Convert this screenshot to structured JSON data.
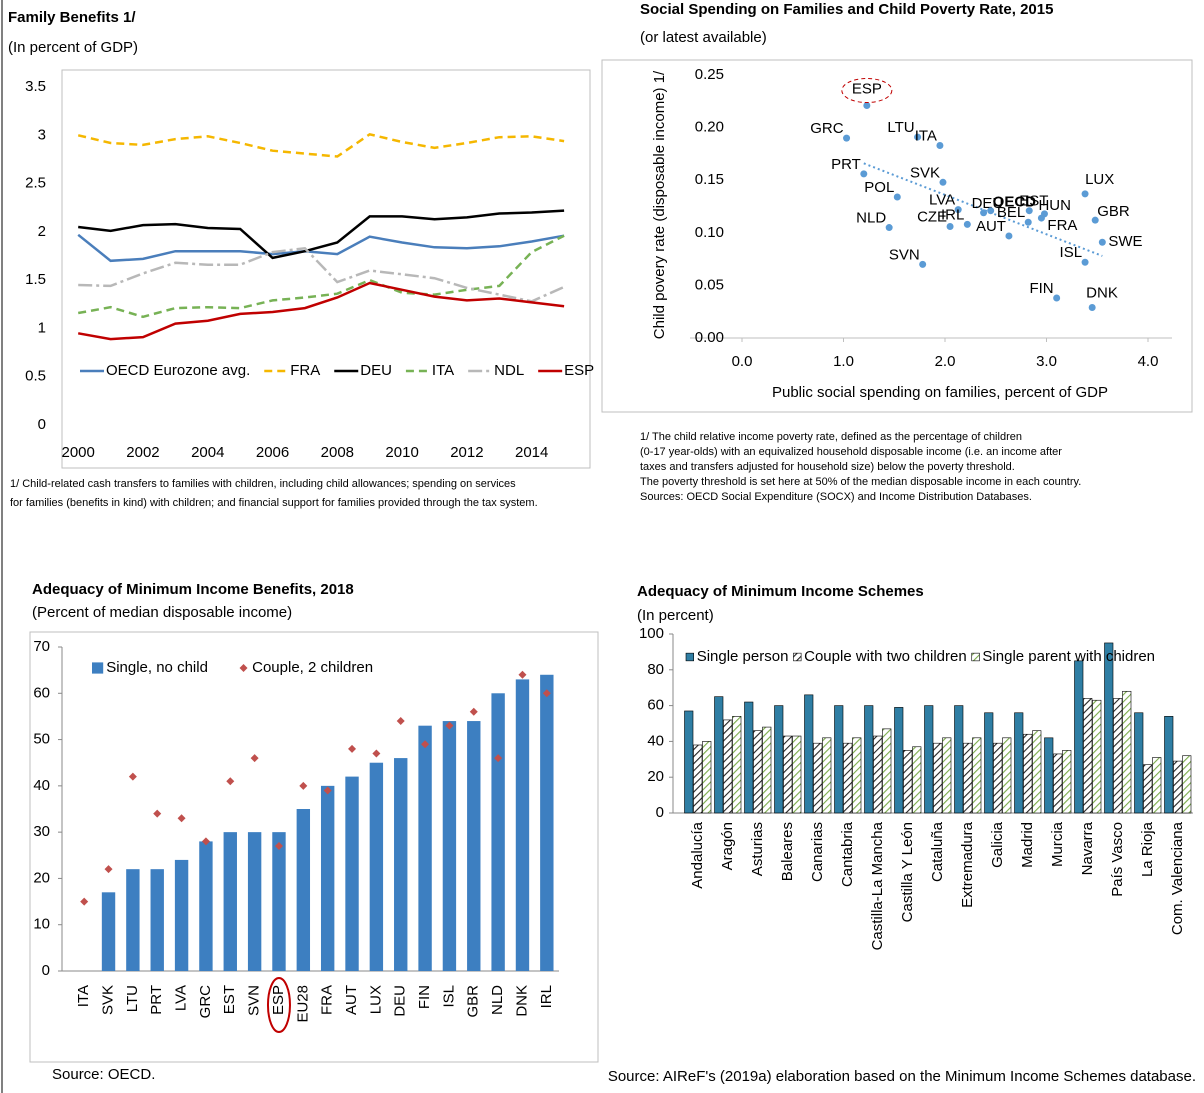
{
  "chart_data": [
    {
      "type": "line",
      "title": "Family Benefits 1/",
      "subtitle": "(In percent of GDP)",
      "title_color": "#2e75b6",
      "x": [
        2000,
        2001,
        2002,
        2003,
        2004,
        2005,
        2006,
        2007,
        2008,
        2009,
        2010,
        2011,
        2012,
        2013,
        2014,
        2015
      ],
      "xlim": [
        1999.5,
        2015.8
      ],
      "xticks": [
        2000,
        2002,
        2004,
        2006,
        2008,
        2010,
        2012,
        2014
      ],
      "ylim": [
        0,
        3.5
      ],
      "yticks": [
        0,
        0.5,
        1,
        1.5,
        2,
        2.5,
        3,
        3.5
      ],
      "series": [
        {
          "name": "OECD Eurozone avg.",
          "color": "#4a7ebb",
          "style": "solid",
          "values": [
            1.97,
            1.7,
            1.72,
            1.8,
            1.8,
            1.8,
            1.77,
            1.8,
            1.77,
            1.95,
            1.89,
            1.84,
            1.83,
            1.85,
            1.9,
            1.96
          ]
        },
        {
          "name": "FRA",
          "color": "#f5b700",
          "style": "dashed",
          "values": [
            3.0,
            2.92,
            2.9,
            2.96,
            2.99,
            2.92,
            2.84,
            2.81,
            2.78,
            3.01,
            2.93,
            2.87,
            2.92,
            2.98,
            2.99,
            2.94
          ]
        },
        {
          "name": "DEU",
          "color": "#000000",
          "style": "solid",
          "values": [
            2.05,
            2.01,
            2.07,
            2.08,
            2.04,
            2.03,
            1.73,
            1.8,
            1.89,
            2.16,
            2.16,
            2.13,
            2.15,
            2.19,
            2.2,
            2.22
          ]
        },
        {
          "name": "ITA",
          "color": "#77b255",
          "style": "dashed",
          "values": [
            1.16,
            1.22,
            1.12,
            1.21,
            1.22,
            1.21,
            1.29,
            1.32,
            1.36,
            1.5,
            1.37,
            1.35,
            1.4,
            1.44,
            1.79,
            1.96
          ]
        },
        {
          "name": "NDL",
          "color": "#b8b8b8",
          "style": "dashdot",
          "values": [
            1.45,
            1.44,
            1.57,
            1.68,
            1.66,
            1.66,
            1.79,
            1.83,
            1.48,
            1.6,
            1.56,
            1.52,
            1.42,
            1.35,
            1.28,
            1.43
          ]
        },
        {
          "name": "ESP",
          "color": "#c00000",
          "style": "solid",
          "values": [
            0.95,
            0.89,
            0.91,
            1.05,
            1.08,
            1.15,
            1.17,
            1.21,
            1.32,
            1.47,
            1.4,
            1.33,
            1.29,
            1.31,
            1.27,
            1.23
          ]
        }
      ],
      "notes": [
        "1/ Child-related cash transfers to families with children, including child allowances; spending on services",
        "for families (benefits in kind) with children; and financial support for families provided through the tax system."
      ]
    },
    {
      "type": "scatter",
      "title": "Social Spending on Families and Child Poverty Rate, 2015",
      "subtitle": "(or latest available)",
      "title_color": "#c47f1a",
      "xlabel": "Public social spending on families, percent of GDP",
      "ylabel": "Child povery rate (disposable income) 1/",
      "color": "#5b9bd5",
      "labels": [
        "ESP",
        "LTU",
        "ITA",
        "GRC",
        "PRT",
        "SVK",
        "POL",
        "LVA",
        "DEU",
        "NLD",
        "CZE",
        "IRL",
        "AUT",
        "OECD",
        "EST",
        "HUN",
        "BEL",
        "FRA",
        "LUX",
        "GBR",
        "ISL",
        "SWE",
        "SVN",
        "FIN",
        "DNK"
      ],
      "x": [
        1.23,
        1.73,
        1.95,
        1.03,
        1.2,
        1.98,
        1.53,
        2.13,
        2.38,
        1.45,
        2.05,
        2.22,
        2.63,
        2.45,
        2.83,
        2.98,
        2.82,
        2.95,
        3.38,
        3.48,
        3.38,
        3.55,
        1.78,
        3.1,
        3.45
      ],
      "y": [
        0.221,
        0.191,
        0.183,
        0.19,
        0.156,
        0.148,
        0.134,
        0.122,
        0.119,
        0.105,
        0.106,
        0.108,
        0.097,
        0.121,
        0.121,
        0.118,
        0.11,
        0.114,
        0.137,
        0.112,
        0.072,
        0.091,
        0.07,
        0.038,
        0.029
      ],
      "bold": 13,
      "highlight": 0,
      "trend": {
        "x": [
          1.2,
          3.55
        ],
        "y": [
          0.166,
          0.078
        ]
      },
      "xlim": [
        0,
        4
      ],
      "xticks": [
        {
          "value": 0,
          "label": "0.0"
        },
        {
          "value": 1,
          "label": "1.0"
        },
        {
          "value": 2,
          "label": "2.0"
        },
        {
          "value": 3,
          "label": "3.0"
        },
        {
          "value": 4,
          "label": "4.0"
        }
      ],
      "ylim": [
        0,
        0.25
      ],
      "yticks": [
        {
          "value": 0,
          "label": "0.00"
        },
        0.05,
        {
          "value": 0.1,
          "label": "0.10"
        },
        0.15,
        {
          "value": 0.2,
          "label": "0.20"
        },
        0.25
      ],
      "notes": [
        "1/ The child relative income poverty rate, defined as the percentage of children",
        " (0-17 year-olds) with an equivalized household disposable income (i.e. an income after",
        "taxes and transfers adjusted for household size) below the poverty threshold.",
        "The poverty threshold is set here at 50% of the median disposable income in each country.",
        "Sources: OECD Social Expenditure (SOCX) and Income Distribution Databases."
      ]
    },
    {
      "type": "bar",
      "title": "Adequacy of Minimum Income Benefits, 2018",
      "subtitle": "(Percent of median disposable income)",
      "title_color": "#2e75b6",
      "categories": [
        "ITA",
        "SVK",
        "LTU",
        "PRT",
        "LVA",
        "GRC",
        "EST",
        "SVN",
        "ESP",
        "EU28",
        "FRA",
        "AUT",
        "LUX",
        "DEU",
        "FIN",
        "ISL",
        "GBR",
        "NLD",
        "DNK",
        "IRL"
      ],
      "series": [
        {
          "name": "Single, no child",
          "color": "#3d7fc1",
          "values": [
            null,
            17,
            22,
            22,
            24,
            28,
            30,
            30,
            30,
            35,
            40,
            42,
            45,
            46,
            53,
            54,
            54,
            60,
            63,
            64
          ]
        },
        {
          "name": "Couple, 2 children",
          "color": "#c0504d",
          "marker": "diamond",
          "values": [
            15,
            22,
            42,
            34,
            33,
            28,
            41,
            46,
            27,
            40,
            39,
            48,
            47,
            54,
            49,
            53,
            56,
            46,
            64,
            60
          ]
        }
      ],
      "highlight": 8,
      "ylim": [
        0,
        70
      ],
      "yticks": [
        0,
        10,
        20,
        30,
        40,
        50,
        60,
        70
      ],
      "source": "Source: OECD."
    },
    {
      "type": "bar",
      "title": "Adequacy of Minimum Income Schemes",
      "subtitle": "(In percent)",
      "title_color": "#2e75b6",
      "categories": [
        "Andalucía",
        "Aragón",
        "Asturias",
        "Baleares",
        "Canarias",
        "Cantabria",
        "Castilla-La Mancha",
        "Castilla Y León",
        "Cataluña",
        "Extremadura",
        "Galicia",
        "Madrid",
        "Murcia",
        "Navarra",
        "País Vasco",
        "La Rioja",
        "Com. Valenciana"
      ],
      "series": [
        {
          "name": "Single person",
          "color": "#2f7ea4",
          "values": [
            57,
            65,
            62,
            60,
            66,
            60,
            60,
            59,
            60,
            60,
            56,
            56,
            42,
            85,
            95,
            56,
            54
          ]
        },
        {
          "name": "Couple with two children",
          "color": "#222222",
          "pattern": "hatch",
          "values": [
            38,
            52,
            46,
            43,
            39,
            39,
            43,
            35,
            39,
            39,
            39,
            44,
            33,
            64,
            64,
            27,
            29
          ]
        },
        {
          "name": "Single parent with chidren",
          "color": "#7aab4a",
          "pattern": "hatch",
          "values": [
            40,
            54,
            48,
            43,
            42,
            42,
            47,
            37,
            42,
            42,
            42,
            46,
            35,
            63,
            68,
            31,
            32
          ]
        }
      ],
      "ylim": [
        0,
        100
      ],
      "yticks": [
        0,
        20,
        40,
        60,
        80,
        100
      ],
      "source": "Source: AIReF's (2019a) elaboration based on the Minimum Income Schemes database."
    }
  ]
}
